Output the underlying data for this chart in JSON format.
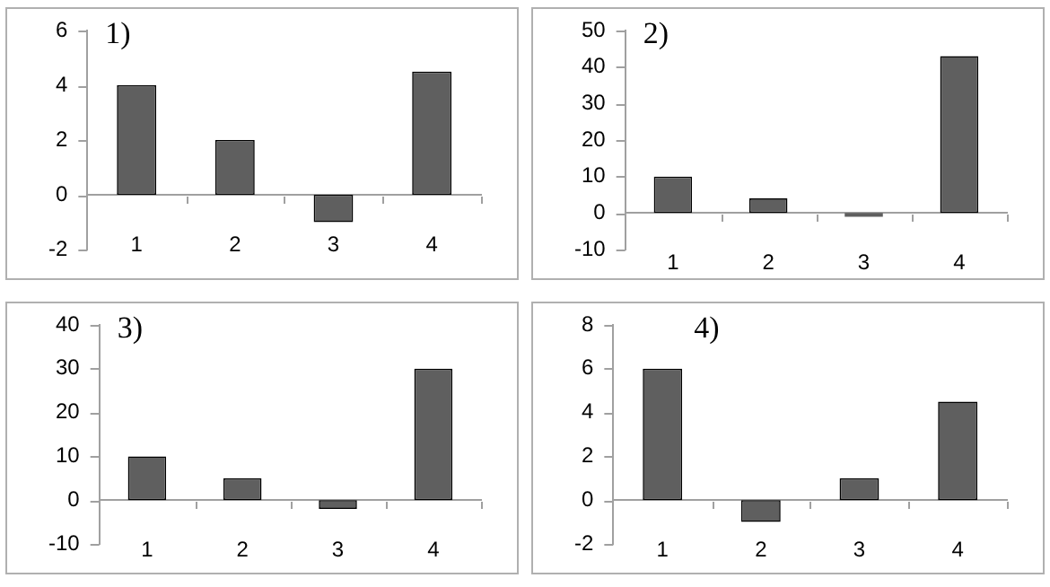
{
  "chart_data": [
    {
      "type": "bar",
      "title": "1)",
      "categories": [
        "1",
        "2",
        "3",
        "4"
      ],
      "values": [
        4,
        2,
        -1,
        4.5
      ],
      "color": "#5f5f5f",
      "ylim": [
        -2,
        6
      ],
      "yticks": [
        -2,
        0,
        2,
        4,
        6
      ],
      "grid": false,
      "legend": false
    },
    {
      "type": "bar",
      "title": "2)",
      "categories": [
        "1",
        "2",
        "3",
        "4"
      ],
      "values": [
        10,
        4,
        -1,
        43
      ],
      "color": "#5f5f5f",
      "ylim": [
        -10,
        50
      ],
      "yticks": [
        -10,
        0,
        10,
        20,
        30,
        40,
        50
      ],
      "grid": false,
      "legend": false
    },
    {
      "type": "bar",
      "title": "3)",
      "categories": [
        "1",
        "2",
        "3",
        "4"
      ],
      "values": [
        10,
        5,
        -2,
        30
      ],
      "color": "#5f5f5f",
      "ylim": [
        -10,
        40
      ],
      "yticks": [
        -10,
        0,
        10,
        20,
        30,
        40
      ],
      "grid": false,
      "legend": false
    },
    {
      "type": "bar",
      "title": "4)",
      "categories": [
        "1",
        "2",
        "3",
        "4"
      ],
      "values": [
        6,
        -1,
        1,
        4.5
      ],
      "color": "#5f5f5f",
      "ylim": [
        -2,
        8
      ],
      "yticks": [
        -2,
        0,
        2,
        4,
        6,
        8
      ],
      "grid": false,
      "legend": false
    }
  ]
}
